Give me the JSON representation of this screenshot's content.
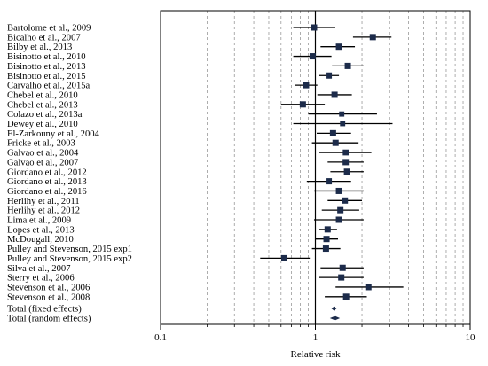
{
  "chart_data": {
    "type": "forest",
    "xlabel": "Relative risk",
    "x_scale": "log",
    "xlim": [
      0.1,
      10
    ],
    "x_ticks": [
      0.1,
      1,
      10
    ],
    "x_tick_labels": [
      "0.1",
      "1",
      "10"
    ],
    "reference_value": 1,
    "studies": [
      {
        "label": "Bartolome et al., 2009",
        "rr": 0.98,
        "lo": 0.72,
        "hi": 1.33,
        "weight": 1.0
      },
      {
        "label": "Bicalho et al., 2007",
        "rr": 2.35,
        "lo": 1.75,
        "hi": 3.1,
        "weight": 1.0
      },
      {
        "label": "Bilby et al., 2013",
        "rr": 1.42,
        "lo": 1.08,
        "hi": 1.8,
        "weight": 1.0
      },
      {
        "label": "Bisinotto et al., 2010",
        "rr": 0.96,
        "lo": 0.72,
        "hi": 1.27,
        "weight": 1.0
      },
      {
        "label": "Bisinotto et al., 2013",
        "rr": 1.62,
        "lo": 1.28,
        "hi": 2.05,
        "weight": 1.0
      },
      {
        "label": "Bisinotto et al., 2015",
        "rr": 1.22,
        "lo": 1.05,
        "hi": 1.42,
        "weight": 1.0
      },
      {
        "label": "Carvalho et al., 2015a",
        "rr": 0.87,
        "lo": 0.74,
        "hi": 1.03,
        "weight": 1.0
      },
      {
        "label": "Chebel et al., 2010",
        "rr": 1.33,
        "lo": 1.03,
        "hi": 1.72,
        "weight": 1.0
      },
      {
        "label": "Chebel et al., 2013",
        "rr": 0.83,
        "lo": 0.6,
        "hi": 1.15,
        "weight": 1.0
      },
      {
        "label": "Colazo et al., 2013a",
        "rr": 1.48,
        "lo": 0.9,
        "hi": 2.5,
        "weight": 0.7
      },
      {
        "label": "Dewey et al., 2010",
        "rr": 1.5,
        "lo": 0.72,
        "hi": 3.15,
        "weight": 0.7
      },
      {
        "label": "El-Zarkouny et al., 2004",
        "rr": 1.3,
        "lo": 1.02,
        "hi": 1.7,
        "weight": 1.0
      },
      {
        "label": "Fricke et al., 2003",
        "rr": 1.35,
        "lo": 0.95,
        "hi": 1.9,
        "weight": 1.0
      },
      {
        "label": "Galvao et al., 2004",
        "rr": 1.57,
        "lo": 1.05,
        "hi": 2.3,
        "weight": 0.9
      },
      {
        "label": "Galvao et al., 2007",
        "rr": 1.57,
        "lo": 1.2,
        "hi": 2.05,
        "weight": 1.0
      },
      {
        "label": "Giordano et al., 2012",
        "rr": 1.6,
        "lo": 1.25,
        "hi": 2.05,
        "weight": 1.0
      },
      {
        "label": "Giordano et al., 2013",
        "rr": 1.22,
        "lo": 0.88,
        "hi": 1.7,
        "weight": 1.0
      },
      {
        "label": "Giordano et al., 2016",
        "rr": 1.42,
        "lo": 0.98,
        "hi": 2.05,
        "weight": 1.0
      },
      {
        "label": "Herlihy et al., 2011",
        "rr": 1.55,
        "lo": 1.2,
        "hi": 2.0,
        "weight": 1.0
      },
      {
        "label": "Herlihy et al., 2012",
        "rr": 1.45,
        "lo": 1.1,
        "hi": 1.92,
        "weight": 1.0
      },
      {
        "label": "Lima et al., 2009",
        "rr": 1.42,
        "lo": 0.98,
        "hi": 2.05,
        "weight": 1.0
      },
      {
        "label": "Lopes et al., 2013",
        "rr": 1.2,
        "lo": 1.05,
        "hi": 1.38,
        "weight": 1.0
      },
      {
        "label": "McDougall, 2010",
        "rr": 1.18,
        "lo": 1.0,
        "hi": 1.4,
        "weight": 1.0
      },
      {
        "label": "Pulley and Stevenson, 2015 exp1",
        "rr": 1.17,
        "lo": 0.95,
        "hi": 1.45,
        "weight": 1.0
      },
      {
        "label": "Pulley and Stevenson, 2015 exp2",
        "rr": 0.63,
        "lo": 0.44,
        "hi": 0.92,
        "weight": 1.0
      },
      {
        "label": "Silva et al., 2007",
        "rr": 1.5,
        "lo": 1.08,
        "hi": 2.05,
        "weight": 1.0
      },
      {
        "label": "Sterry et al., 2006",
        "rr": 1.47,
        "lo": 1.05,
        "hi": 2.05,
        "weight": 1.0
      },
      {
        "label": "Stevenson et al., 2006",
        "rr": 2.2,
        "lo": 1.35,
        "hi": 3.7,
        "weight": 1.0
      },
      {
        "label": "Stevenson et al., 2008",
        "rr": 1.58,
        "lo": 1.15,
        "hi": 2.15,
        "weight": 1.0
      }
    ],
    "totals": [
      {
        "label": "Total (fixed effects)",
        "rr": 1.32,
        "lo": 1.27,
        "hi": 1.37
      },
      {
        "label": "Total (random effects)",
        "rr": 1.34,
        "lo": 1.24,
        "hi": 1.44
      }
    ]
  }
}
